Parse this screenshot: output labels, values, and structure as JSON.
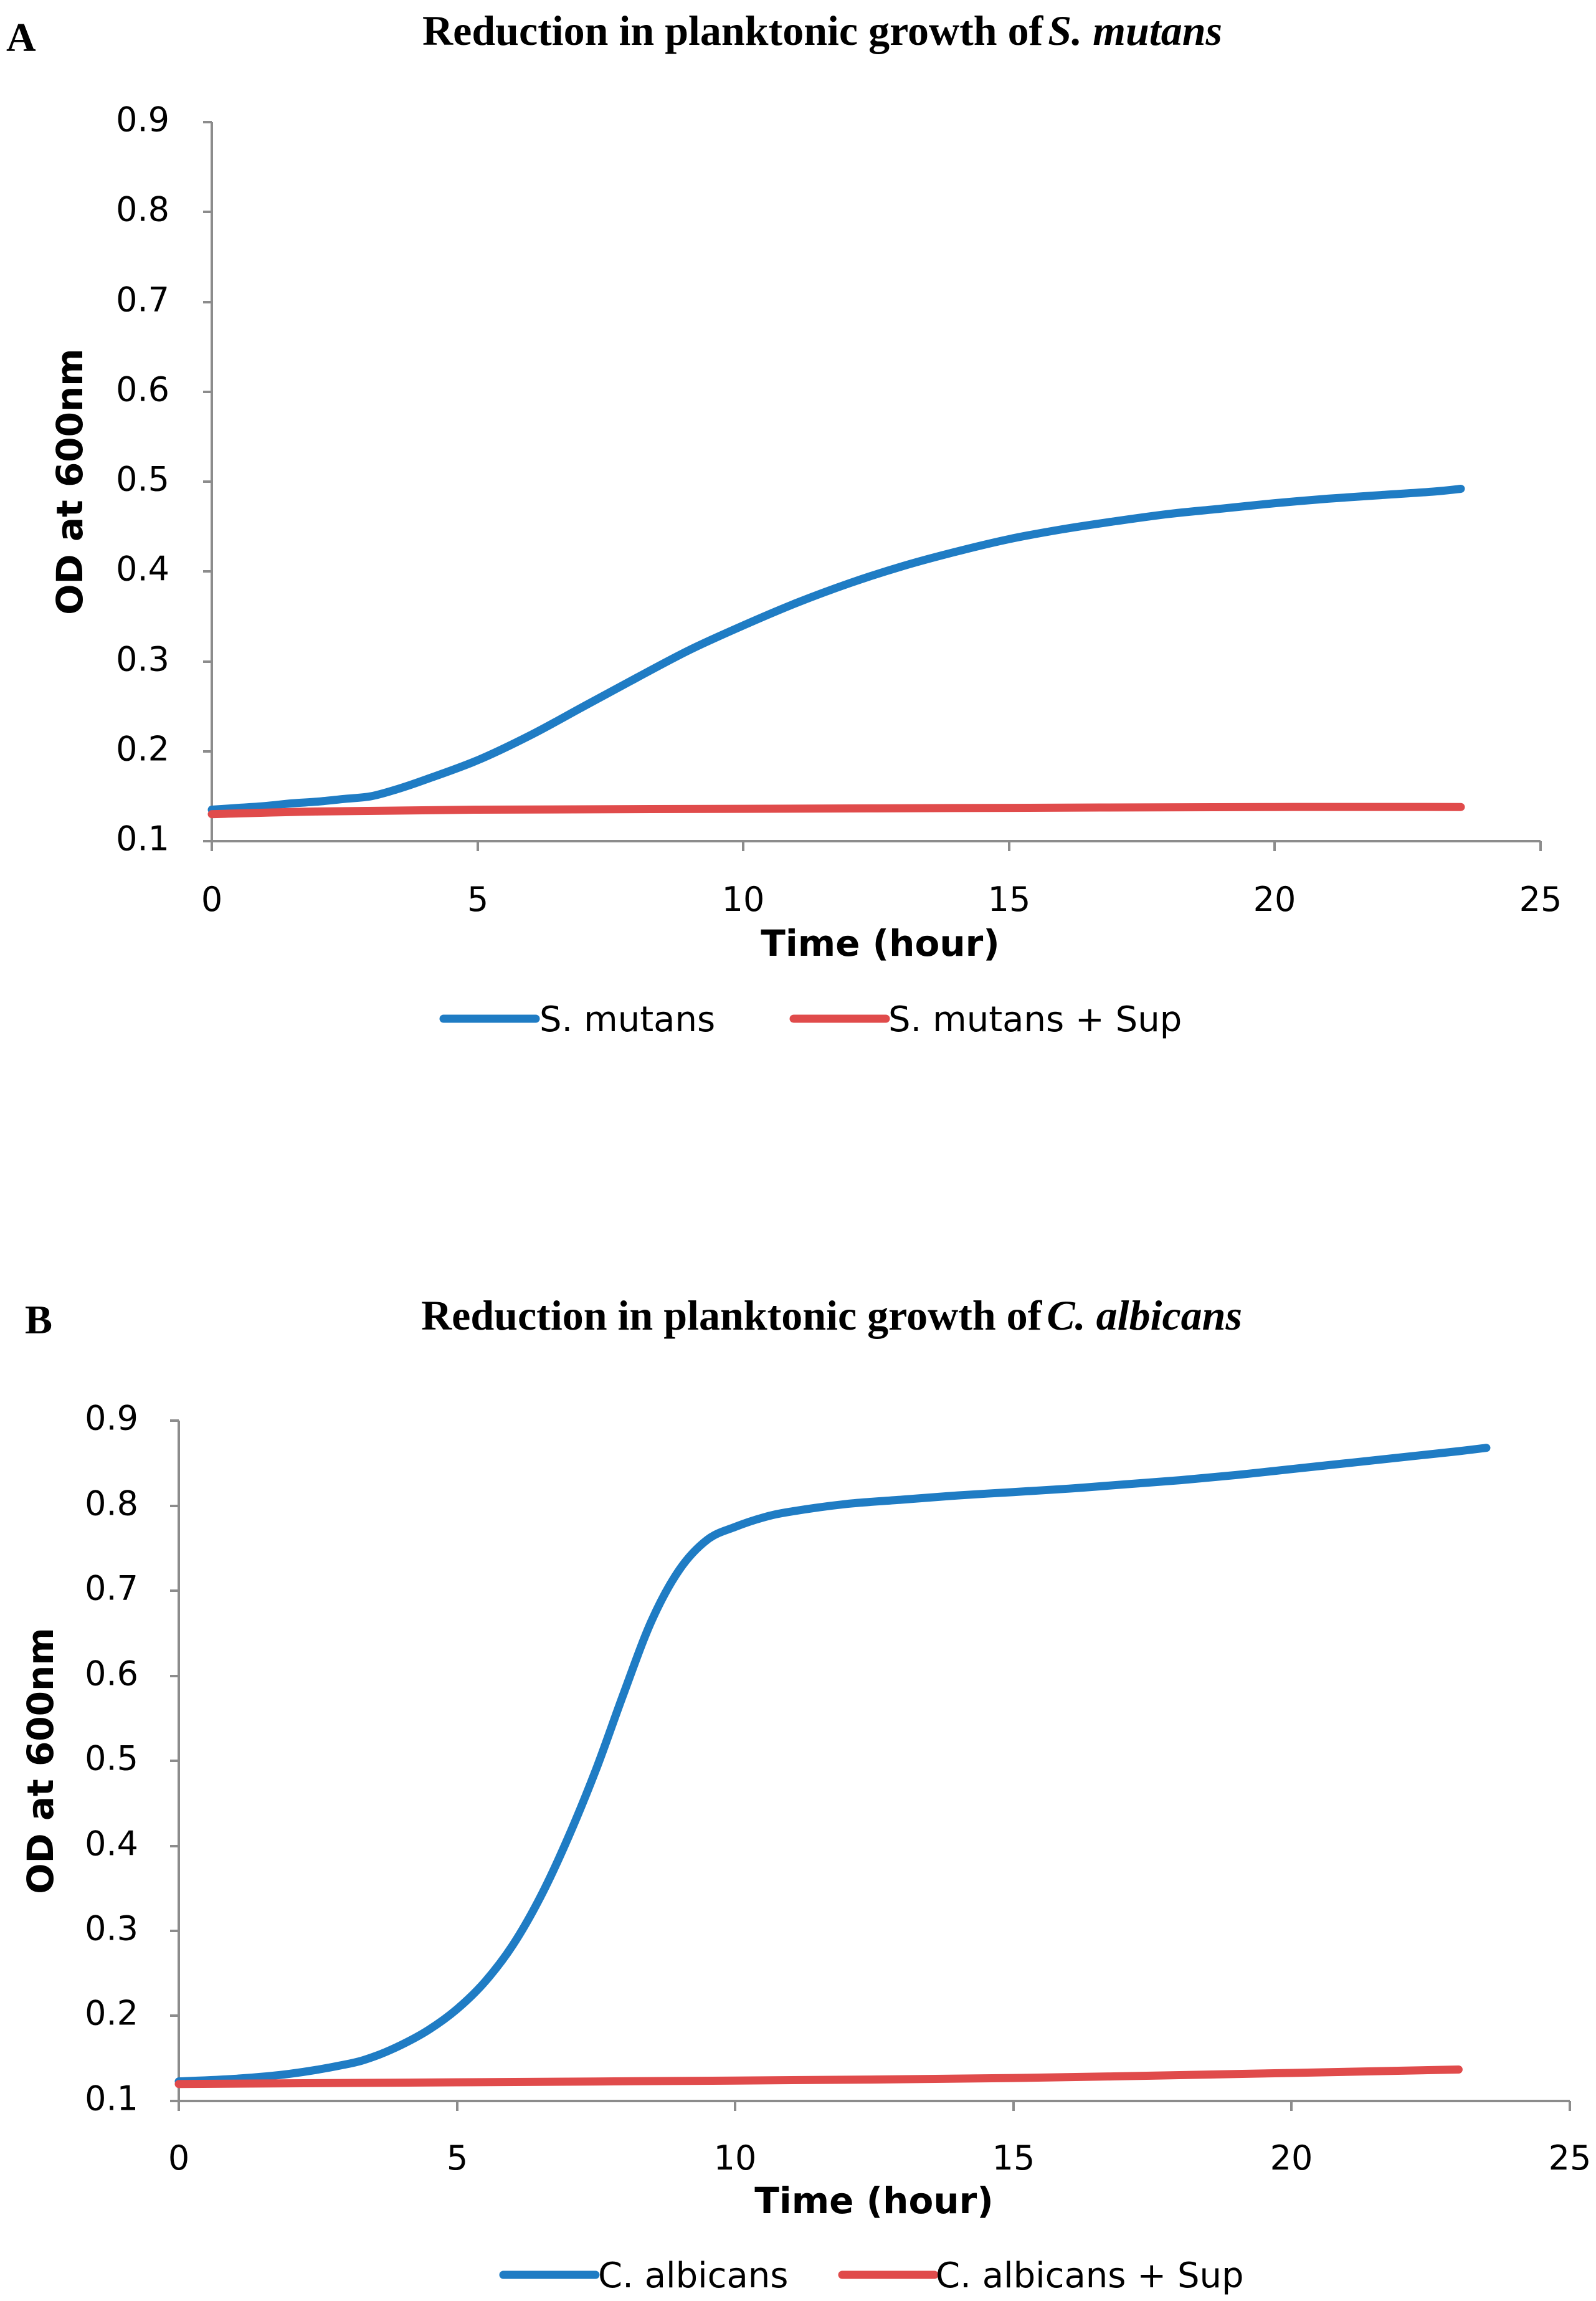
{
  "colors": {
    "blue": "#1f7cc4",
    "red": "#e04b4b"
  },
  "chart_data": [
    {
      "panel": "A",
      "type": "line",
      "title": "Reduction in planktonic growth of",
      "title_italic": "S. mutans",
      "xlabel": "Time (hour)",
      "ylabel": "OD at 600nm",
      "xlim": [
        0,
        25
      ],
      "ylim": [
        0.1,
        0.9
      ],
      "x_ticks": [
        "0",
        "5",
        "10",
        "15",
        "20",
        "25"
      ],
      "y_ticks": [
        "0.1",
        "0.2",
        "0.3",
        "0.4",
        "0.5",
        "0.6",
        "0.7",
        "0.8",
        "0.9"
      ],
      "grid": false,
      "legend_position": "bottom",
      "series": [
        {
          "name": "S. mutans",
          "color": "#1f7cc4",
          "x": [
            0,
            0.5,
            1,
            1.5,
            2,
            2.5,
            3,
            3.5,
            4,
            5,
            6,
            7,
            8,
            9,
            10,
            11,
            12,
            13,
            14,
            15,
            16,
            17,
            18,
            19,
            20,
            21,
            22,
            23,
            23.5
          ],
          "y": [
            0.135,
            0.137,
            0.139,
            0.142,
            0.144,
            0.147,
            0.15,
            0.158,
            0.168,
            0.19,
            0.218,
            0.25,
            0.282,
            0.313,
            0.34,
            0.365,
            0.387,
            0.406,
            0.422,
            0.436,
            0.447,
            0.456,
            0.464,
            0.47,
            0.476,
            0.481,
            0.485,
            0.489,
            0.492
          ]
        },
        {
          "name": "S. mutans + Sup",
          "color": "#e04b4b",
          "x": [
            0,
            2,
            5,
            10,
            15,
            20,
            23.5
          ],
          "y": [
            0.13,
            0.133,
            0.135,
            0.136,
            0.137,
            0.138,
            0.138
          ]
        }
      ]
    },
    {
      "panel": "B",
      "type": "line",
      "title": "Reduction in planktonic growth of",
      "title_italic": "C. albicans",
      "xlabel": "Time (hour)",
      "ylabel": "OD at 600nm",
      "xlim": [
        0,
        25
      ],
      "ylim": [
        0.1,
        0.9
      ],
      "x_ticks": [
        "0",
        "5",
        "10",
        "15",
        "20",
        "25"
      ],
      "y_ticks": [
        "0.1",
        "0.2",
        "0.3",
        "0.4",
        "0.5",
        "0.6",
        "0.7",
        "0.8",
        "0.9"
      ],
      "grid": false,
      "legend_position": "bottom",
      "series": [
        {
          "name": "C. albicans",
          "color": "#1f7cc4",
          "x": [
            0,
            1,
            2,
            3,
            3.5,
            4,
            4.5,
            5,
            5.5,
            6,
            6.5,
            7,
            7.5,
            8,
            8.5,
            9,
            9.5,
            10,
            10.5,
            11,
            12,
            13,
            14,
            15,
            16,
            17,
            18,
            19,
            20,
            21,
            22,
            23,
            23.5
          ],
          "y": [
            0.123,
            0.126,
            0.132,
            0.143,
            0.152,
            0.166,
            0.184,
            0.208,
            0.24,
            0.283,
            0.34,
            0.41,
            0.49,
            0.58,
            0.665,
            0.725,
            0.76,
            0.775,
            0.786,
            0.793,
            0.802,
            0.807,
            0.812,
            0.816,
            0.82,
            0.825,
            0.83,
            0.836,
            0.843,
            0.85,
            0.857,
            0.864,
            0.868
          ]
        },
        {
          "name": "C. albicans + Sup",
          "color": "#e04b4b",
          "x": [
            0,
            5,
            10,
            15,
            20,
            23
          ],
          "y": [
            0.12,
            0.122,
            0.124,
            0.127,
            0.133,
            0.137
          ]
        }
      ]
    }
  ]
}
